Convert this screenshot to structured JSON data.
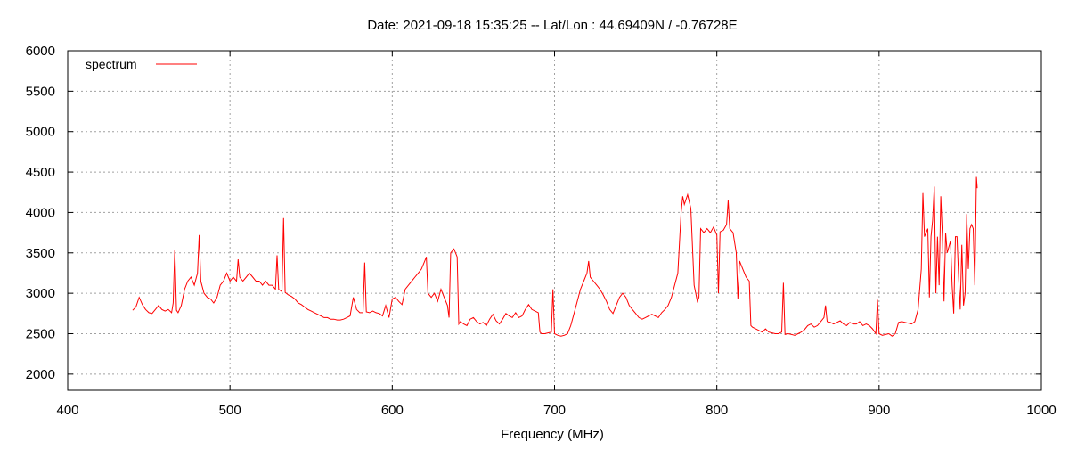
{
  "chart_data": {
    "type": "line",
    "title": "Date: 2021-09-18 15:35:25  --  Lat/Lon : 44.69409N / -0.76728E",
    "xlabel": "Frequency (MHz)",
    "ylabel": "",
    "xlim": [
      400,
      1000
    ],
    "ylim": [
      1800,
      6000
    ],
    "xticks": [
      400,
      500,
      600,
      700,
      800,
      900,
      1000
    ],
    "yticks": [
      2000,
      2500,
      3000,
      3500,
      4000,
      4500,
      5000,
      5500,
      6000
    ],
    "grid": true,
    "legend_position": "top-left",
    "series": [
      {
        "name": "spectrum",
        "color": "#ff0000",
        "points": [
          [
            440,
            2790
          ],
          [
            442,
            2830
          ],
          [
            444,
            2950
          ],
          [
            446,
            2860
          ],
          [
            448,
            2800
          ],
          [
            450,
            2760
          ],
          [
            452,
            2750
          ],
          [
            454,
            2800
          ],
          [
            456,
            2850
          ],
          [
            458,
            2800
          ],
          [
            460,
            2780
          ],
          [
            462,
            2800
          ],
          [
            464,
            2760
          ],
          [
            465,
            2880
          ],
          [
            466,
            3540
          ],
          [
            467,
            2790
          ],
          [
            468,
            2760
          ],
          [
            470,
            2850
          ],
          [
            472,
            3050
          ],
          [
            474,
            3150
          ],
          [
            476,
            3200
          ],
          [
            478,
            3100
          ],
          [
            480,
            3250
          ],
          [
            481,
            3720
          ],
          [
            482,
            3150
          ],
          [
            484,
            3000
          ],
          [
            486,
            2950
          ],
          [
            488,
            2930
          ],
          [
            490,
            2880
          ],
          [
            492,
            2950
          ],
          [
            494,
            3100
          ],
          [
            496,
            3150
          ],
          [
            498,
            3250
          ],
          [
            500,
            3150
          ],
          [
            502,
            3200
          ],
          [
            504,
            3150
          ],
          [
            505,
            3420
          ],
          [
            506,
            3200
          ],
          [
            508,
            3150
          ],
          [
            510,
            3200
          ],
          [
            512,
            3250
          ],
          [
            514,
            3200
          ],
          [
            516,
            3150
          ],
          [
            518,
            3150
          ],
          [
            520,
            3100
          ],
          [
            522,
            3150
          ],
          [
            524,
            3100
          ],
          [
            526,
            3100
          ],
          [
            528,
            3050
          ],
          [
            529,
            3470
          ],
          [
            530,
            3050
          ],
          [
            532,
            3020
          ],
          [
            533,
            3930
          ],
          [
            534,
            3010
          ],
          [
            536,
            2980
          ],
          [
            538,
            2960
          ],
          [
            540,
            2930
          ],
          [
            542,
            2880
          ],
          [
            544,
            2860
          ],
          [
            546,
            2830
          ],
          [
            548,
            2800
          ],
          [
            550,
            2780
          ],
          [
            552,
            2760
          ],
          [
            554,
            2740
          ],
          [
            556,
            2720
          ],
          [
            558,
            2700
          ],
          [
            560,
            2700
          ],
          [
            562,
            2680
          ],
          [
            564,
            2680
          ],
          [
            566,
            2670
          ],
          [
            568,
            2670
          ],
          [
            570,
            2680
          ],
          [
            572,
            2700
          ],
          [
            574,
            2720
          ],
          [
            576,
            2950
          ],
          [
            578,
            2800
          ],
          [
            580,
            2760
          ],
          [
            582,
            2760
          ],
          [
            583,
            3380
          ],
          [
            584,
            2770
          ],
          [
            586,
            2760
          ],
          [
            588,
            2780
          ],
          [
            590,
            2760
          ],
          [
            592,
            2750
          ],
          [
            594,
            2720
          ],
          [
            596,
            2850
          ],
          [
            598,
            2700
          ],
          [
            600,
            2930
          ],
          [
            602,
            2950
          ],
          [
            604,
            2900
          ],
          [
            606,
            2860
          ],
          [
            608,
            3050
          ],
          [
            610,
            3100
          ],
          [
            612,
            3150
          ],
          [
            614,
            3200
          ],
          [
            616,
            3250
          ],
          [
            618,
            3300
          ],
          [
            620,
            3400
          ],
          [
            621,
            3450
          ],
          [
            622,
            3000
          ],
          [
            624,
            2950
          ],
          [
            626,
            3000
          ],
          [
            628,
            2900
          ],
          [
            630,
            3050
          ],
          [
            632,
            2950
          ],
          [
            634,
            2850
          ],
          [
            635,
            2700
          ],
          [
            636,
            3500
          ],
          [
            638,
            3550
          ],
          [
            640,
            3450
          ],
          [
            641,
            2620
          ],
          [
            642,
            2650
          ],
          [
            644,
            2620
          ],
          [
            646,
            2600
          ],
          [
            648,
            2680
          ],
          [
            650,
            2700
          ],
          [
            652,
            2650
          ],
          [
            654,
            2620
          ],
          [
            656,
            2640
          ],
          [
            658,
            2600
          ],
          [
            660,
            2680
          ],
          [
            662,
            2740
          ],
          [
            664,
            2660
          ],
          [
            666,
            2620
          ],
          [
            668,
            2680
          ],
          [
            670,
            2750
          ],
          [
            672,
            2720
          ],
          [
            674,
            2700
          ],
          [
            676,
            2760
          ],
          [
            678,
            2700
          ],
          [
            680,
            2720
          ],
          [
            682,
            2800
          ],
          [
            684,
            2860
          ],
          [
            686,
            2800
          ],
          [
            688,
            2780
          ],
          [
            690,
            2760
          ],
          [
            691,
            2520
          ],
          [
            692,
            2500
          ],
          [
            694,
            2500
          ],
          [
            696,
            2510
          ],
          [
            698,
            2520
          ],
          [
            699,
            3050
          ],
          [
            700,
            2500
          ],
          [
            702,
            2480
          ],
          [
            704,
            2470
          ],
          [
            706,
            2480
          ],
          [
            708,
            2500
          ],
          [
            710,
            2600
          ],
          [
            712,
            2750
          ],
          [
            714,
            2900
          ],
          [
            716,
            3050
          ],
          [
            718,
            3150
          ],
          [
            720,
            3250
          ],
          [
            721,
            3400
          ],
          [
            722,
            3200
          ],
          [
            724,
            3150
          ],
          [
            726,
            3100
          ],
          [
            728,
            3050
          ],
          [
            730,
            2980
          ],
          [
            732,
            2900
          ],
          [
            734,
            2800
          ],
          [
            736,
            2750
          ],
          [
            738,
            2850
          ],
          [
            740,
            2950
          ],
          [
            742,
            3000
          ],
          [
            744,
            2950
          ],
          [
            746,
            2850
          ],
          [
            748,
            2800
          ],
          [
            750,
            2750
          ],
          [
            752,
            2700
          ],
          [
            754,
            2680
          ],
          [
            756,
            2700
          ],
          [
            758,
            2720
          ],
          [
            760,
            2740
          ],
          [
            762,
            2720
          ],
          [
            764,
            2700
          ],
          [
            766,
            2760
          ],
          [
            768,
            2800
          ],
          [
            770,
            2850
          ],
          [
            772,
            2950
          ],
          [
            774,
            3100
          ],
          [
            776,
            3250
          ],
          [
            778,
            4000
          ],
          [
            779,
            4200
          ],
          [
            780,
            4100
          ],
          [
            782,
            4220
          ],
          [
            784,
            4050
          ],
          [
            786,
            3100
          ],
          [
            788,
            2900
          ],
          [
            789,
            2950
          ],
          [
            790,
            3800
          ],
          [
            792,
            3750
          ],
          [
            794,
            3800
          ],
          [
            796,
            3750
          ],
          [
            798,
            3820
          ],
          [
            800,
            3720
          ],
          [
            801,
            3000
          ],
          [
            802,
            3760
          ],
          [
            804,
            3780
          ],
          [
            806,
            3850
          ],
          [
            807,
            4150
          ],
          [
            808,
            3800
          ],
          [
            810,
            3750
          ],
          [
            812,
            3500
          ],
          [
            813,
            2930
          ],
          [
            814,
            3400
          ],
          [
            816,
            3300
          ],
          [
            818,
            3200
          ],
          [
            820,
            3150
          ],
          [
            821,
            2600
          ],
          [
            822,
            2580
          ],
          [
            824,
            2560
          ],
          [
            826,
            2540
          ],
          [
            828,
            2520
          ],
          [
            830,
            2560
          ],
          [
            832,
            2520
          ],
          [
            834,
            2510
          ],
          [
            836,
            2500
          ],
          [
            838,
            2500
          ],
          [
            840,
            2520
          ],
          [
            841,
            3130
          ],
          [
            842,
            2490
          ],
          [
            844,
            2500
          ],
          [
            846,
            2490
          ],
          [
            848,
            2480
          ],
          [
            850,
            2500
          ],
          [
            852,
            2520
          ],
          [
            854,
            2550
          ],
          [
            856,
            2600
          ],
          [
            858,
            2620
          ],
          [
            860,
            2580
          ],
          [
            862,
            2600
          ],
          [
            864,
            2650
          ],
          [
            866,
            2700
          ],
          [
            867,
            2850
          ],
          [
            868,
            2650
          ],
          [
            870,
            2640
          ],
          [
            872,
            2620
          ],
          [
            874,
            2640
          ],
          [
            876,
            2660
          ],
          [
            878,
            2620
          ],
          [
            880,
            2600
          ],
          [
            882,
            2640
          ],
          [
            884,
            2620
          ],
          [
            886,
            2620
          ],
          [
            888,
            2650
          ],
          [
            890,
            2600
          ],
          [
            892,
            2620
          ],
          [
            894,
            2600
          ],
          [
            896,
            2560
          ],
          [
            898,
            2500
          ],
          [
            899,
            2920
          ],
          [
            900,
            2500
          ],
          [
            902,
            2480
          ],
          [
            904,
            2490
          ],
          [
            906,
            2500
          ],
          [
            908,
            2470
          ],
          [
            910,
            2500
          ],
          [
            912,
            2640
          ],
          [
            914,
            2650
          ],
          [
            916,
            2640
          ],
          [
            918,
            2630
          ],
          [
            920,
            2620
          ],
          [
            922,
            2650
          ],
          [
            924,
            2800
          ],
          [
            926,
            3300
          ],
          [
            927,
            4240
          ],
          [
            928,
            3700
          ],
          [
            930,
            3800
          ],
          [
            931,
            2950
          ],
          [
            932,
            3700
          ],
          [
            933,
            3900
          ],
          [
            934,
            4320
          ],
          [
            935,
            3000
          ],
          [
            936,
            3700
          ],
          [
            937,
            3100
          ],
          [
            938,
            4200
          ],
          [
            939,
            3700
          ],
          [
            940,
            2900
          ],
          [
            941,
            3750
          ],
          [
            942,
            3500
          ],
          [
            944,
            3650
          ],
          [
            945,
            3100
          ],
          [
            946,
            2750
          ],
          [
            947,
            3700
          ],
          [
            948,
            3700
          ],
          [
            949,
            3200
          ],
          [
            950,
            2800
          ],
          [
            951,
            3600
          ],
          [
            952,
            2850
          ],
          [
            953,
            3000
          ],
          [
            954,
            3980
          ],
          [
            955,
            3300
          ],
          [
            956,
            3800
          ],
          [
            957,
            3850
          ],
          [
            958,
            3800
          ],
          [
            959,
            3100
          ],
          [
            960,
            4440
          ],
          [
            960.5,
            4300
          ]
        ]
      }
    ]
  }
}
